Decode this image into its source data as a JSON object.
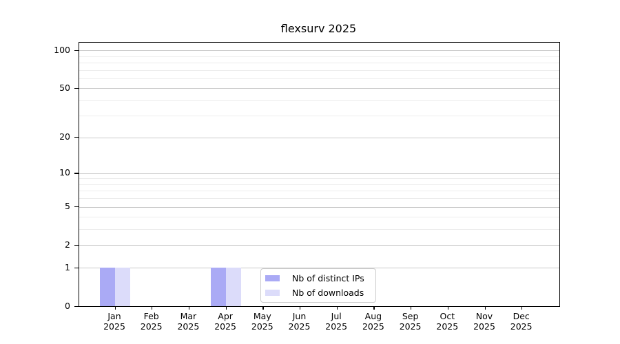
{
  "figure": {
    "title": "flexsurv 2025"
  },
  "chart_data": {
    "type": "bar",
    "title": "flexsurv 2025",
    "categories": [
      "Jan\n2025",
      "Feb\n2025",
      "Mar\n2025",
      "Apr\n2025",
      "May\n2025",
      "Jun\n2025",
      "Jul\n2025",
      "Aug\n2025",
      "Sep\n2025",
      "Oct\n2025",
      "Nov\n2025",
      "Dec\n2025"
    ],
    "series": [
      {
        "name": "Nb of distinct IPs",
        "color": "#aaaaf5",
        "values": [
          1,
          0,
          0,
          1,
          0,
          0,
          0,
          0,
          0,
          0,
          0,
          0
        ]
      },
      {
        "name": "Nb of downloads",
        "color": "#dcdcfa",
        "values": [
          1,
          0,
          0,
          1,
          0,
          0,
          0,
          0,
          0,
          0,
          0,
          0
        ]
      }
    ],
    "xlabel": "",
    "ylabel": "",
    "yscale": "log1p",
    "ylim": [
      0,
      115
    ],
    "yticks": [
      0,
      1,
      2,
      5,
      10,
      20,
      50,
      100
    ],
    "minor_gridlines": [
      3,
      4,
      6,
      7,
      8,
      9,
      30,
      40,
      60,
      70,
      80,
      90
    ],
    "grid": "horizontal",
    "legend_position": "inside-bottom-center",
    "colors": {
      "axis": "#000000",
      "text": "#000000",
      "major_grid": "#c9c9c9",
      "minor_grid": "#ececec",
      "legend_border": "#cccccc",
      "background": "#ffffff"
    }
  }
}
